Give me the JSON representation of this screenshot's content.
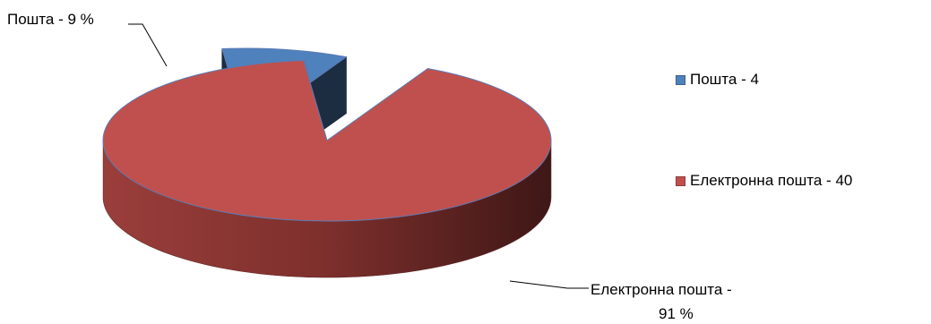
{
  "chart_data": {
    "type": "pie",
    "style": "3d-exploded",
    "categories": [
      "Пошта",
      "Електронна пошта"
    ],
    "values": [
      4,
      40
    ],
    "percentages": [
      9,
      91
    ],
    "colors": {
      "Пошта": "#4f81bd",
      "Електронна пошта": "#c0504d"
    },
    "data_labels": [
      {
        "category": "Пошта",
        "line1": "Пошта - 9 %",
        "line2": ""
      },
      {
        "category": "Електронна пошта",
        "line1": "Електронна пошта -",
        "line2": "91 %"
      }
    ],
    "legend": {
      "position": "right",
      "entries": [
        {
          "label": "Пошта - 4",
          "color": "#4f81bd"
        },
        {
          "label": "Електронна пошта - 40",
          "color": "#c0504d"
        }
      ]
    },
    "title": ""
  }
}
